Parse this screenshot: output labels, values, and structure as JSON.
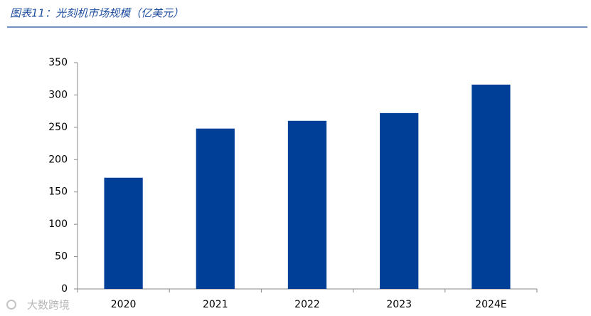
{
  "chart_data": {
    "type": "bar",
    "title": "图表11：光刻机市场规模（亿美元）",
    "categories": [
      "2020",
      "2021",
      "2022",
      "2023",
      "2024E"
    ],
    "values": [
      172,
      248,
      260,
      272,
      316
    ],
    "color": "#003f98",
    "ylim": [
      0,
      350
    ],
    "yticks": [
      0,
      50,
      100,
      150,
      200,
      250,
      300,
      350
    ],
    "grid": false
  },
  "watermark": "大数跨境"
}
